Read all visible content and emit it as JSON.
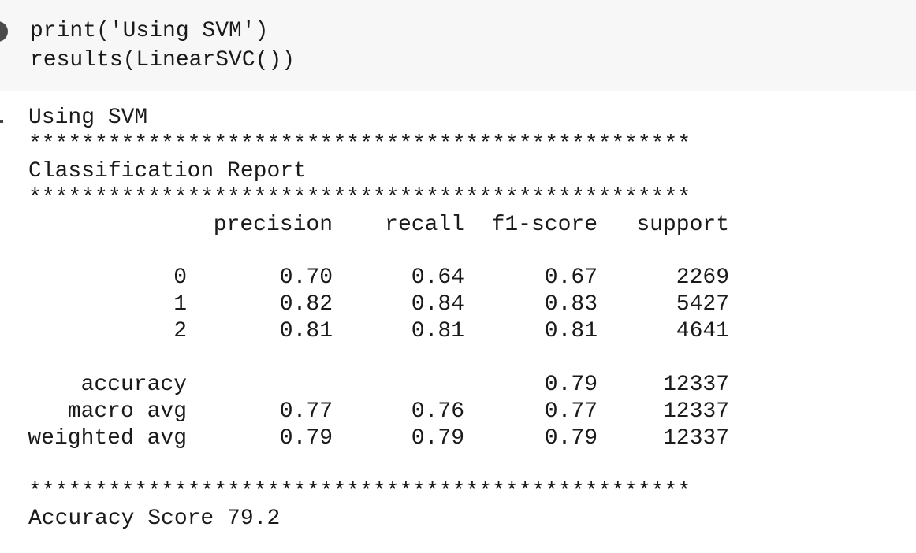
{
  "code": {
    "lines": [
      "print('Using SVM')",
      "results(LinearSVC())"
    ]
  },
  "output": {
    "lines_before": [
      "Using SVM",
      "**************************************************",
      "Classification Report",
      "**************************************************"
    ],
    "report": {
      "columns": [
        "precision",
        "recall",
        "f1-score",
        "support"
      ],
      "class_rows": [
        [
          "0",
          "0.70",
          "0.64",
          "0.67",
          "2269"
        ],
        [
          "1",
          "0.82",
          "0.84",
          "0.83",
          "5427"
        ],
        [
          "2",
          "0.81",
          "0.81",
          "0.81",
          "4641"
        ]
      ],
      "summary_rows": [
        [
          "accuracy",
          null,
          null,
          "0.79",
          "12337"
        ],
        [
          "macro avg",
          "0.77",
          "0.76",
          "0.77",
          "12337"
        ],
        [
          "weighted avg",
          "0.79",
          "0.79",
          "0.79",
          "12337"
        ]
      ]
    },
    "lines_after": [
      "**************************************************",
      "Accuracy Score 79.2"
    ]
  }
}
